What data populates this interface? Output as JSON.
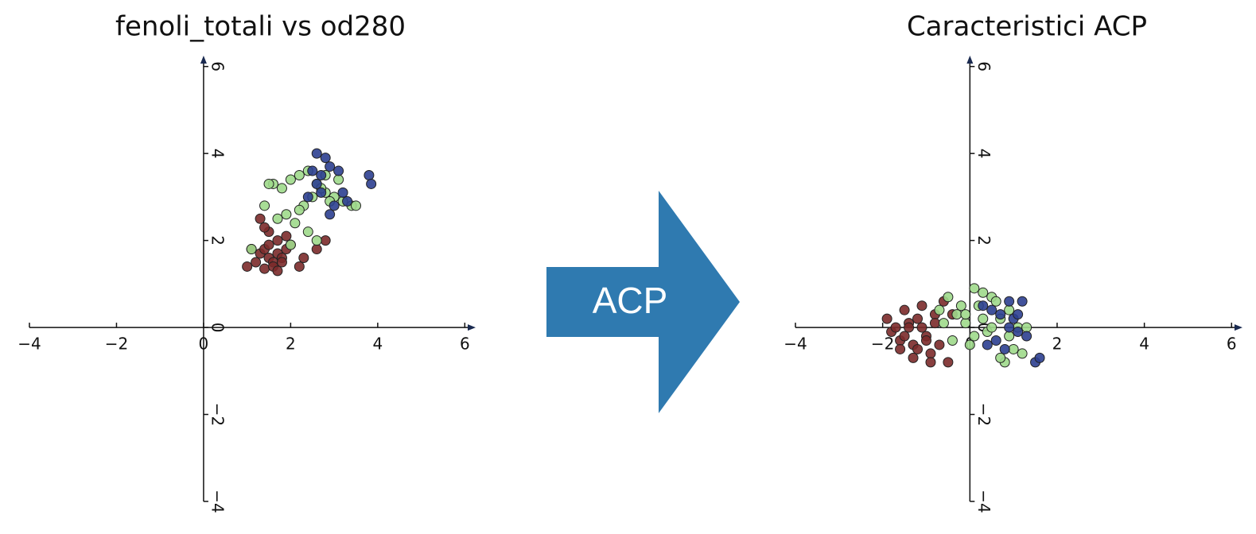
{
  "chart_data": [
    {
      "type": "scatter",
      "title": "fenoli_totali vs od280",
      "xlim": [
        -4,
        6.25
      ],
      "ylim": [
        -4,
        6.25
      ],
      "xticks": [
        {
          "value": -4,
          "label": "−4"
        },
        {
          "value": -2,
          "label": "−2"
        },
        0,
        2,
        4,
        6
      ],
      "yticks": [
        {
          "value": -4,
          "label": "−4"
        },
        {
          "value": -2,
          "label": "−2"
        },
        0,
        2,
        4,
        6
      ],
      "series": [
        {
          "color": "#7b2a2a",
          "x": [
            1.0,
            1.2,
            1.3,
            1.4,
            1.5,
            1.6,
            1.7,
            1.8,
            1.9,
            2.0,
            1.3,
            1.5,
            1.7,
            1.9,
            1.1,
            1.4,
            1.6,
            1.8,
            2.2,
            2.3,
            2.6,
            2.8,
            1.5,
            1.7,
            1.4
          ],
          "y": [
            1.4,
            1.5,
            1.7,
            1.8,
            1.6,
            1.5,
            1.7,
            1.6,
            1.8,
            1.9,
            2.5,
            2.2,
            2.0,
            2.1,
            1.8,
            1.35,
            1.4,
            1.5,
            1.4,
            1.6,
            1.8,
            2.0,
            1.9,
            1.3,
            2.3
          ]
        },
        {
          "color": "#9fd98b",
          "x": [
            1.1,
            1.4,
            1.6,
            1.8,
            2.0,
            2.2,
            2.4,
            2.6,
            2.8,
            3.0,
            3.2,
            3.4,
            1.7,
            1.9,
            2.1,
            2.3,
            2.5,
            2.7,
            2.9,
            3.1,
            3.5,
            2.0,
            2.4,
            2.6,
            1.5,
            2.2,
            2.8
          ],
          "y": [
            1.8,
            2.8,
            3.3,
            3.2,
            3.4,
            3.5,
            3.6,
            3.3,
            3.1,
            3.0,
            2.9,
            2.8,
            2.5,
            2.6,
            2.4,
            2.8,
            3.0,
            3.2,
            2.9,
            3.4,
            2.8,
            1.9,
            2.2,
            2.0,
            3.3,
            2.7,
            3.5
          ]
        },
        {
          "color": "#2c3f90",
          "x": [
            2.6,
            2.8,
            2.5,
            2.7,
            2.9,
            3.1,
            3.2,
            2.6,
            2.9,
            3.0,
            3.8,
            3.85,
            2.4,
            2.7,
            3.3
          ],
          "y": [
            4.0,
            3.9,
            3.6,
            3.5,
            3.7,
            3.6,
            3.1,
            3.3,
            2.6,
            2.8,
            3.5,
            3.3,
            3.0,
            3.1,
            2.9
          ]
        }
      ]
    },
    {
      "type": "scatter",
      "title": "Caracteristici ACP",
      "xlim": [
        -4,
        6.25
      ],
      "ylim": [
        -4,
        6.25
      ],
      "xticks": [
        {
          "value": -4,
          "label": "−4"
        },
        {
          "value": -2,
          "label": "−2"
        },
        0,
        2,
        4,
        6
      ],
      "yticks": [
        {
          "value": -4,
          "label": "−4"
        },
        {
          "value": -2,
          "label": "−2"
        },
        0,
        2,
        4,
        6
      ],
      "series": [
        {
          "color": "#7b2a2a",
          "x": [
            -1.9,
            -1.8,
            -1.7,
            -1.6,
            -1.5,
            -1.4,
            -1.3,
            -1.2,
            -1.1,
            -1.0,
            -0.9,
            -0.8,
            -1.5,
            -1.3,
            -1.1,
            -0.9,
            -0.7,
            -1.6,
            -1.2,
            -0.6,
            -0.5,
            -0.4,
            -1.0,
            -1.4,
            -0.8
          ],
          "y": [
            0.2,
            -0.1,
            0.0,
            -0.3,
            -0.2,
            0.1,
            -0.4,
            -0.5,
            0.0,
            -0.2,
            -0.6,
            0.3,
            0.4,
            -0.7,
            0.5,
            -0.8,
            -0.4,
            -0.5,
            0.2,
            0.6,
            -0.8,
            0.3,
            -0.3,
            0.0,
            0.1
          ]
        },
        {
          "color": "#9fd98b",
          "x": [
            -0.7,
            -0.5,
            -0.3,
            -0.1,
            0.1,
            0.3,
            0.5,
            0.7,
            0.9,
            1.1,
            1.3,
            -0.4,
            0.0,
            0.2,
            0.4,
            0.6,
            0.8,
            1.0,
            -0.6,
            -0.2,
            0.3,
            0.7,
            0.9,
            0.1,
            0.5,
            1.2,
            -0.1
          ],
          "y": [
            0.4,
            0.7,
            0.3,
            0.1,
            0.9,
            0.8,
            0.7,
            0.2,
            -0.2,
            0.0,
            0.0,
            -0.3,
            -0.4,
            0.5,
            -0.1,
            0.6,
            -0.8,
            -0.5,
            0.1,
            0.5,
            0.2,
            -0.7,
            0.4,
            -0.2,
            0.0,
            -0.6,
            0.3
          ]
        },
        {
          "color": "#2c3f90",
          "x": [
            0.3,
            0.5,
            0.7,
            0.9,
            1.0,
            1.1,
            1.2,
            0.6,
            0.8,
            1.3,
            1.5,
            1.6,
            0.4,
            0.9,
            1.1
          ],
          "y": [
            0.5,
            0.4,
            0.3,
            0.6,
            0.2,
            -0.1,
            0.6,
            -0.3,
            -0.5,
            -0.2,
            -0.8,
            -0.7,
            -0.4,
            0.0,
            0.3
          ]
        }
      ]
    }
  ],
  "arrow": {
    "label": "ACP"
  }
}
